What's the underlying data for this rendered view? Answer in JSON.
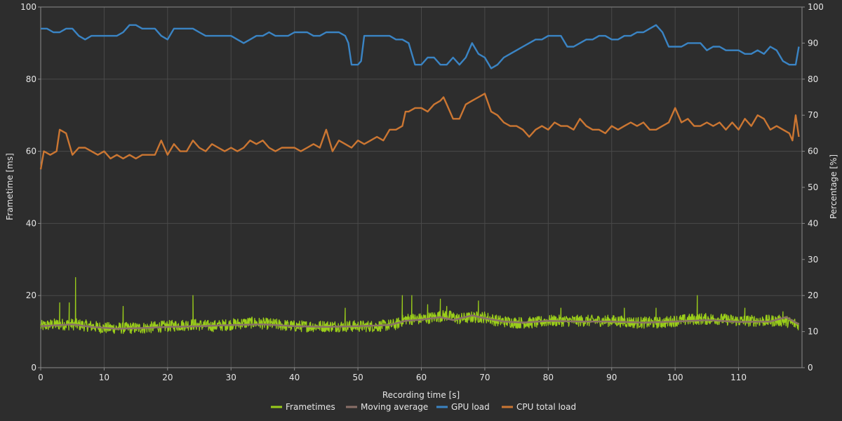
{
  "chart_data": {
    "type": "line",
    "xlabel": "Recording time [s]",
    "ylabel_left": "Frametime [ms]",
    "ylabel_right": "Percentage [%]",
    "xlim": [
      0,
      120
    ],
    "ylim_left": [
      0,
      100
    ],
    "ylim_right": [
      0,
      100
    ],
    "x_ticks": [
      0,
      10,
      20,
      30,
      40,
      50,
      60,
      70,
      80,
      90,
      100,
      110
    ],
    "y_left_ticks": [
      0,
      20,
      40,
      60,
      80,
      100
    ],
    "y_right_ticks": [
      0,
      10,
      20,
      30,
      40,
      50,
      60,
      70,
      80,
      90,
      100
    ],
    "grid": true,
    "legend_position": "bottom-center",
    "series": [
      {
        "name": "Frametimes",
        "axis": "left",
        "color": "#9acd1a",
        "x": [
          0,
          2,
          4,
          5.5,
          8,
          10,
          13,
          16,
          20,
          24,
          27,
          30,
          33,
          37,
          40,
          43,
          47,
          50,
          53,
          56,
          57.5,
          60,
          62,
          64,
          66,
          68,
          70,
          72,
          75,
          78,
          80,
          83,
          86,
          90,
          94,
          98,
          100,
          103.5,
          107,
          110,
          114,
          117,
          119.5
        ],
        "values": [
          11.5,
          12,
          12,
          12,
          11.5,
          11,
          11,
          11,
          11.5,
          12,
          11.5,
          12,
          12.5,
          12,
          11.5,
          11.5,
          11.5,
          11.5,
          11.5,
          12,
          13.5,
          13.5,
          14,
          14.5,
          13.5,
          14,
          14,
          13,
          12.5,
          12.5,
          13,
          13,
          13,
          13,
          12.5,
          12.5,
          13,
          13.5,
          13.5,
          13,
          13,
          13,
          12
        ],
        "spikes": [
          [
            3,
            18
          ],
          [
            4.5,
            18
          ],
          [
            5.5,
            25
          ],
          [
            13,
            17
          ],
          [
            24,
            20
          ],
          [
            48,
            16.5
          ],
          [
            57,
            20
          ],
          [
            58.5,
            20
          ],
          [
            61,
            17.5
          ],
          [
            63,
            19
          ],
          [
            64,
            17
          ],
          [
            69,
            18.5
          ],
          [
            82,
            16.5
          ],
          [
            92,
            16.5
          ],
          [
            97,
            16.5
          ],
          [
            103.5,
            20
          ],
          [
            111,
            16.5
          ],
          [
            117,
            15.5
          ]
        ]
      },
      {
        "name": "Moving average",
        "axis": "left",
        "color": "#8a6f68",
        "x": [
          0,
          3,
          5,
          8,
          12,
          16,
          20,
          25,
          30,
          35,
          40,
          45,
          50,
          55,
          57.5,
          60,
          63,
          65,
          68,
          70,
          73,
          76,
          80,
          85,
          90,
          95,
          100,
          105,
          110,
          115,
          117.5,
          119.5
        ],
        "values": [
          11.5,
          11.8,
          12,
          11.3,
          10.8,
          11,
          11.3,
          11.5,
          11.8,
          12,
          11.5,
          11.3,
          11.5,
          11.8,
          13,
          13.3,
          14,
          13.2,
          14.5,
          13.7,
          12.8,
          12.5,
          13,
          12.8,
          12.8,
          12.5,
          12.8,
          13.2,
          12.7,
          12.8,
          14,
          12
        ]
      },
      {
        "name": "GPU load",
        "axis": "right",
        "color": "#3a84c4",
        "x": [
          0,
          1,
          2,
          3,
          4,
          5,
          6,
          7,
          8,
          9,
          10,
          11,
          12,
          13,
          14,
          15,
          16,
          17,
          18,
          19,
          20,
          21,
          22,
          23,
          24,
          25,
          26,
          27,
          28,
          29,
          30,
          31,
          32,
          33,
          34,
          35,
          36,
          37,
          38,
          39,
          40,
          41,
          42,
          43,
          44,
          45,
          46,
          47,
          48,
          48.5,
          49,
          50,
          50.5,
          51,
          52,
          53,
          54,
          55,
          56,
          57,
          58,
          59,
          60,
          61,
          62,
          63,
          64,
          65,
          66,
          67,
          68,
          69,
          70,
          71,
          72,
          73,
          74,
          75,
          76,
          77,
          78,
          79,
          80,
          81,
          82,
          83,
          84,
          85,
          86,
          87,
          88,
          89,
          90,
          91,
          92,
          93,
          94,
          95,
          96,
          97,
          98,
          99,
          100,
          101,
          102,
          103,
          104,
          105,
          106,
          107,
          108,
          109,
          110,
          111,
          112,
          113,
          114,
          115,
          116,
          117,
          118,
          119,
          119.5
        ],
        "values": [
          94,
          94,
          93,
          93,
          94,
          94,
          92,
          91,
          92,
          92,
          92,
          92,
          92,
          93,
          95,
          95,
          94,
          94,
          94,
          92,
          91,
          94,
          94,
          94,
          94,
          93,
          92,
          92,
          92,
          92,
          92,
          91,
          90,
          91,
          92,
          92,
          93,
          92,
          92,
          92,
          93,
          93,
          93,
          92,
          92,
          93,
          93,
          93,
          92,
          90,
          84,
          84,
          85,
          92,
          92,
          92,
          92,
          92,
          91,
          91,
          90,
          84,
          84,
          86,
          86,
          84,
          84,
          86,
          84,
          86,
          90,
          87,
          86,
          83,
          84,
          86,
          87,
          88,
          89,
          90,
          91,
          91,
          92,
          92,
          92,
          89,
          89,
          90,
          91,
          91,
          92,
          92,
          91,
          91,
          92,
          92,
          93,
          93,
          94,
          95,
          93,
          89,
          89,
          89,
          90,
          90,
          90,
          88,
          89,
          89,
          88,
          88,
          88,
          87,
          87,
          88,
          87,
          89,
          88,
          85,
          84,
          84,
          89
        ]
      },
      {
        "name": "CPU total load",
        "axis": "right",
        "color": "#cb7632",
        "x": [
          0,
          0.5,
          1.5,
          2.5,
          3,
          4,
          5,
          6,
          7,
          8,
          9,
          10,
          11,
          12,
          13,
          14,
          15,
          16,
          17,
          18,
          19,
          20,
          21,
          22,
          23,
          24,
          25,
          26,
          27,
          28,
          29,
          30,
          31,
          32,
          33,
          34,
          35,
          36,
          37,
          38,
          39,
          40,
          41,
          42,
          43,
          44,
          45,
          46,
          47,
          48,
          49,
          50,
          51,
          52,
          53,
          54,
          55,
          56,
          57,
          57.5,
          58,
          59,
          60,
          61,
          62,
          63,
          63.5,
          64,
          65,
          66,
          67,
          68,
          69,
          70,
          71,
          72,
          73,
          74,
          75,
          76,
          77,
          78,
          79,
          80,
          81,
          82,
          83,
          84,
          85,
          86,
          87,
          88,
          89,
          90,
          91,
          92,
          93,
          94,
          95,
          96,
          97,
          98,
          99,
          100,
          101,
          102,
          103,
          104,
          105,
          106,
          107,
          108,
          109,
          110,
          111,
          112,
          113,
          114,
          115,
          116,
          117,
          118,
          118.5,
          119,
          119.5
        ],
        "values": [
          55,
          60,
          59,
          60,
          66,
          65,
          59,
          61,
          61,
          60,
          59,
          60,
          58,
          59,
          58,
          59,
          58,
          59,
          59,
          59,
          63,
          59,
          62,
          60,
          60,
          63,
          61,
          60,
          62,
          61,
          60,
          61,
          60,
          61,
          63,
          62,
          63,
          61,
          60,
          61,
          61,
          61,
          60,
          61,
          62,
          61,
          66,
          60,
          63,
          62,
          61,
          63,
          62,
          63,
          64,
          63,
          66,
          66,
          67,
          71,
          71,
          72,
          72,
          71,
          73,
          74,
          75,
          73,
          69,
          69,
          73,
          74,
          75,
          76,
          71,
          70,
          68,
          67,
          67,
          66,
          64,
          66,
          67,
          66,
          68,
          67,
          67,
          66,
          69,
          67,
          66,
          66,
          65,
          67,
          66,
          67,
          68,
          67,
          68,
          66,
          66,
          67,
          68,
          72,
          68,
          69,
          67,
          67,
          68,
          67,
          68,
          66,
          68,
          66,
          69,
          67,
          70,
          69,
          66,
          67,
          66,
          65,
          63,
          70,
          64
        ]
      }
    ]
  }
}
